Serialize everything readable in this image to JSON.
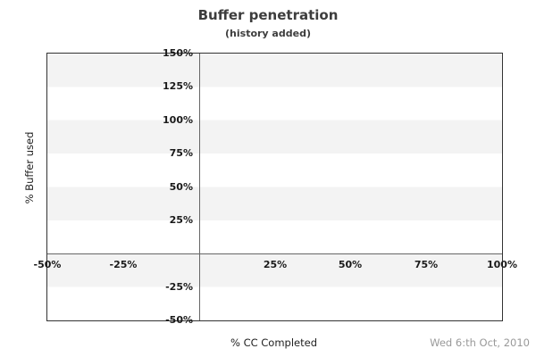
{
  "header": {
    "title": "Buffer penetration",
    "subtitle": "(history added)"
  },
  "footer": {
    "date": "Wed 6:th Oct, 2010"
  },
  "chart_data": {
    "type": "scatter",
    "title": "Buffer penetration",
    "subtitle": "(history added)",
    "xlabel": "% CC Completed",
    "ylabel": "% Buffer used",
    "xlim": [
      -50,
      100
    ],
    "ylim": [
      -50,
      150
    ],
    "xticks": [
      {
        "value": -50,
        "label": "-50%"
      },
      {
        "value": -25,
        "label": "-25%"
      },
      {
        "value": 25,
        "label": "25%"
      },
      {
        "value": 50,
        "label": "50%"
      },
      {
        "value": 75,
        "label": "75%"
      },
      {
        "value": 100,
        "label": "100%"
      }
    ],
    "yticks": [
      {
        "value": 150,
        "label": "150%"
      },
      {
        "value": 125,
        "label": "125%"
      },
      {
        "value": 100,
        "label": "100%"
      },
      {
        "value": 75,
        "label": "75%"
      },
      {
        "value": 50,
        "label": "50%"
      },
      {
        "value": 25,
        "label": "25%"
      },
      {
        "value": -25,
        "label": "-25%"
      },
      {
        "value": -50,
        "label": "-50%"
      }
    ],
    "zero_lines": {
      "x_at": 0,
      "y_at": 0
    },
    "series": [],
    "grid": "horizontal-bands",
    "band_step_pct": 25,
    "legend": "none",
    "colors": {
      "band": "#f3f3f3",
      "plot_background": "#ffffff",
      "plot_border": "#333333",
      "zero_line": "#666666",
      "tick_label": "#1a1a1a",
      "title": "#3d3d3d",
      "axis_label": "#222222",
      "date": "#999999"
    }
  }
}
